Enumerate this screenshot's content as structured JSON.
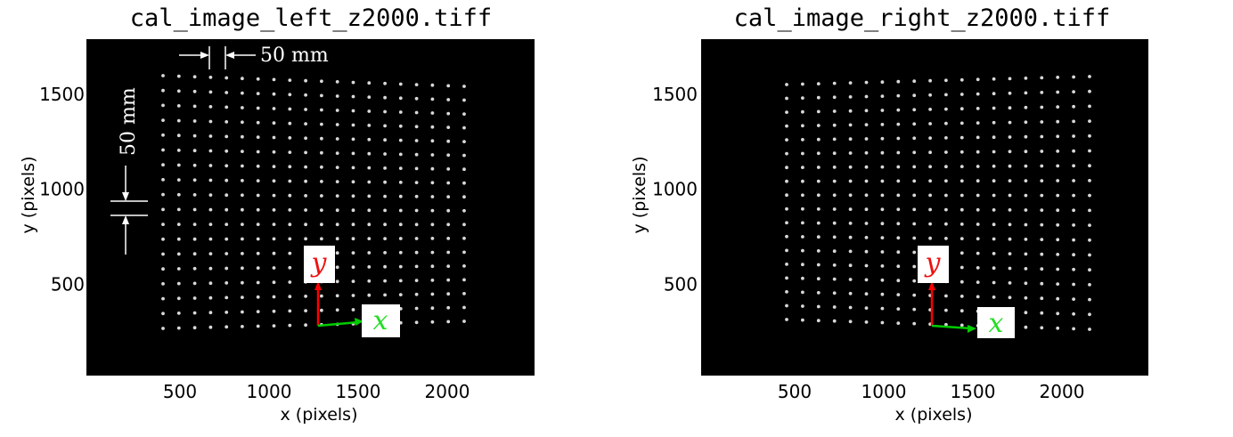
{
  "panels": [
    {
      "title": "cal_image_left_z2000.tiff",
      "xlabel": "x (pixels)",
      "ylabel": "y (pixels)",
      "x_ticks": [
        500,
        1000,
        1500,
        2000
      ],
      "y_ticks": [
        500,
        1000,
        1500
      ],
      "annotation_h": "50 mm",
      "annotation_v": "50 mm",
      "axis_x_letter": "x",
      "axis_y_letter": "y"
    },
    {
      "title": "cal_image_right_z2000.tiff",
      "xlabel": "x (pixels)",
      "ylabel": "y (pixels)",
      "x_ticks": [
        500,
        1000,
        1500,
        2000
      ],
      "y_ticks": [
        500,
        1000,
        1500
      ],
      "axis_x_letter": "x",
      "axis_y_letter": "y"
    }
  ],
  "colors": {
    "image_background": "#000000",
    "dot": "#d9d9d9",
    "axis_x_arrow": "#00cc00",
    "axis_y_arrow": "#ff0000",
    "axis_x_letter": "#22dd22",
    "axis_y_letter": "#ee1111"
  }
}
